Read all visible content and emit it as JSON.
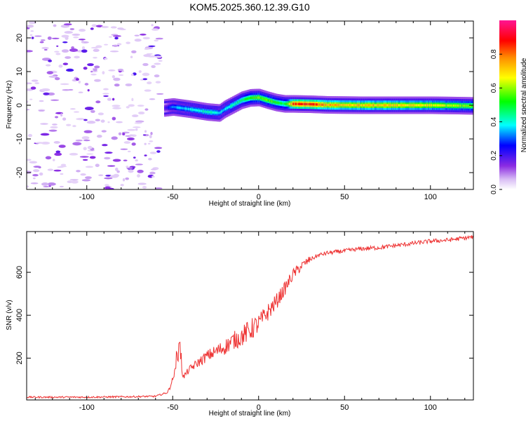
{
  "title": "KOM5.2025.360.12.39.G10",
  "chart_data": [
    {
      "type": "heatmap",
      "name": "spectrogram",
      "xlabel": "Height of straight line (km)",
      "ylabel": "Frequency (Hz)",
      "xlim": [
        -135,
        125
      ],
      "ylim": [
        -25,
        25
      ],
      "xticks": [
        -100,
        -50,
        0,
        50,
        100
      ],
      "xtick_labels": [
        "-100",
        "-50",
        "0",
        "50",
        "100"
      ],
      "yticks": [
        -20,
        -10,
        0,
        10,
        20
      ],
      "ytick_labels": [
        "-20",
        "-10",
        "0",
        "10",
        "20"
      ],
      "colorbar": {
        "label": "Normalized spectral amplitude",
        "range": [
          0,
          1
        ],
        "ticks": [
          0.0,
          0.2,
          0.4,
          0.6,
          0.8
        ],
        "tick_labels": [
          "0.0",
          "0.2",
          "0.4",
          "0.6",
          "0.8"
        ],
        "colormap": "rainbow (white-lavender-violet-blue-cyan-green-yellow-orange-red-magenta)"
      },
      "noise_region_x": [
        -135,
        -60
      ],
      "ridge": {
        "x": [
          -55,
          -50,
          -40,
          -30,
          -23,
          -20,
          -10,
          -5,
          0,
          5,
          10,
          15,
          20,
          30,
          40,
          60,
          80,
          100,
          115,
          125
        ],
        "y": [
          -0.8,
          -0.5,
          -1.2,
          -2.0,
          -2.3,
          -1.2,
          1.5,
          2.2,
          2.3,
          1.5,
          0.8,
          0.4,
          0.4,
          0.3,
          0.1,
          0.0,
          0.0,
          0.0,
          -0.1,
          -0.2
        ],
        "amplitude": [
          0.2,
          0.35,
          0.4,
          0.45,
          0.4,
          0.4,
          0.5,
          0.55,
          0.6,
          0.6,
          0.55,
          0.5,
          0.9,
          0.92,
          0.8,
          0.75,
          0.75,
          0.7,
          0.65,
          0.6
        ]
      }
    },
    {
      "type": "line",
      "name": "snr",
      "xlabel": "Height of straight line (km)",
      "ylabel": "SNR (v/v)",
      "xlim": [
        -135,
        125
      ],
      "ylim": [
        5,
        790
      ],
      "xticks": [
        -100,
        -50,
        0,
        50,
        100
      ],
      "xtick_labels": [
        "-100",
        "-50",
        "0",
        "50",
        "100"
      ],
      "yticks": [
        200,
        400,
        600
      ],
      "ytick_labels": [
        "200",
        "400",
        "600"
      ],
      "color": "#ee3333",
      "series": [
        {
          "name": "SNR",
          "x": [
            -135,
            -100,
            -75,
            -60,
            -53,
            -50,
            -48,
            -46,
            -44,
            -40,
            -35,
            -30,
            -25,
            -20,
            -15,
            -10,
            -5,
            0,
            5,
            10,
            15,
            20,
            25,
            30,
            35,
            40,
            50,
            60,
            70,
            80,
            90,
            100,
            110,
            120,
            125
          ],
          "y": [
            18,
            18,
            20,
            22,
            40,
            100,
            160,
            220,
            110,
            150,
            180,
            210,
            230,
            250,
            280,
            300,
            330,
            360,
            410,
            460,
            520,
            590,
            630,
            660,
            680,
            690,
            700,
            710,
            715,
            725,
            735,
            745,
            750,
            760,
            765
          ]
        }
      ]
    }
  ]
}
